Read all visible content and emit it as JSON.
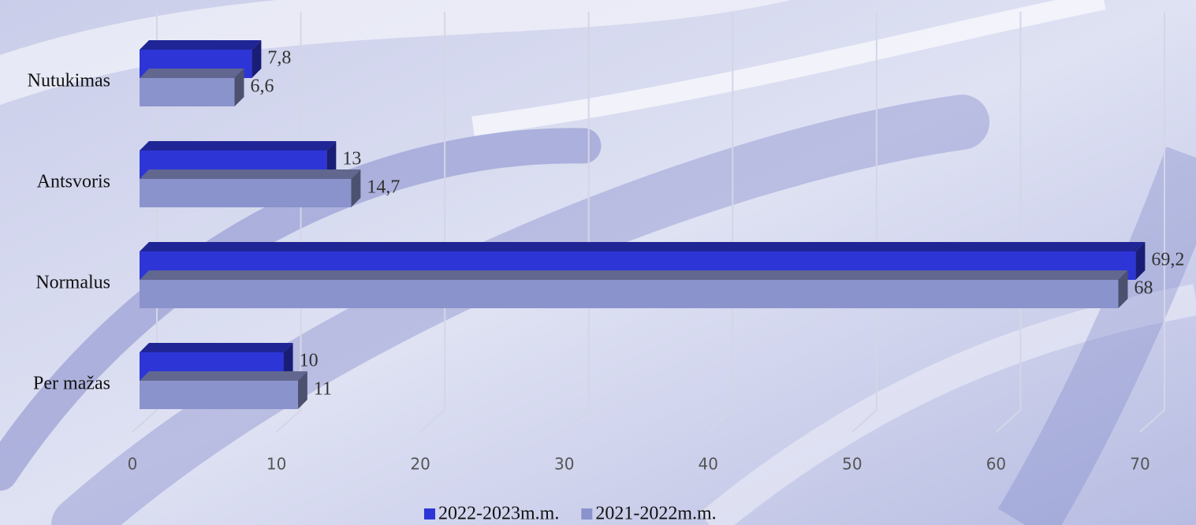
{
  "chart_data": {
    "type": "bar3d_horizontal",
    "categories": [
      "Nutukimas",
      "Antsvoris",
      "Normalus",
      "Per mažas"
    ],
    "series": [
      {
        "name": "2022-2023m.m.",
        "color": "#2e35d6",
        "values": [
          7.8,
          13,
          69.2,
          10
        ],
        "value_labels": [
          "7,8",
          "13",
          "69,2",
          "10"
        ]
      },
      {
        "name": "2021-2022m.m.",
        "color": "#8b93cc",
        "values": [
          6.6,
          14.7,
          68,
          11
        ],
        "value_labels": [
          "6,6",
          "14,7",
          "68",
          "11"
        ]
      }
    ],
    "xlim": [
      0,
      70
    ],
    "xticks": [
      0,
      10,
      20,
      30,
      40,
      50,
      60,
      70
    ],
    "grid": true,
    "legend": "bottom"
  }
}
